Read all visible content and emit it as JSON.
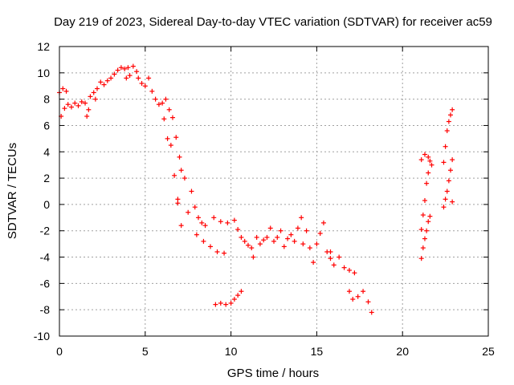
{
  "chart_data": {
    "type": "scatter",
    "title": "Day 219 of 2023, Sidereal Day-to-day VTEC variation (SDTVAR) for receiver ac59",
    "xlabel": "GPS time / hours",
    "ylabel": "SDTVAR / TECUs",
    "xlim": [
      0,
      25
    ],
    "ylim": [
      -10,
      12
    ],
    "x_ticks": [
      "0",
      "5",
      "10",
      "15",
      "20",
      "25"
    ],
    "y_ticks": [
      "-10",
      "-8",
      "-6",
      "-4",
      "-2",
      "0",
      "2",
      "4",
      "6",
      "8",
      "10",
      "12"
    ],
    "grid": true,
    "marker": "+",
    "series": [
      {
        "name": "SDTVAR",
        "color": "#ff0000",
        "points": [
          [
            0.0,
            8.5
          ],
          [
            0.1,
            6.7
          ],
          [
            0.2,
            8.8
          ],
          [
            0.3,
            7.3
          ],
          [
            0.4,
            8.6
          ],
          [
            0.5,
            7.6
          ],
          [
            0.7,
            7.4
          ],
          [
            0.9,
            7.7
          ],
          [
            1.1,
            7.5
          ],
          [
            1.3,
            7.8
          ],
          [
            1.5,
            7.7
          ],
          [
            1.7,
            7.2
          ],
          [
            1.6,
            6.7
          ],
          [
            1.8,
            8.2
          ],
          [
            2.0,
            8.5
          ],
          [
            2.2,
            8.8
          ],
          [
            2.1,
            8.0
          ],
          [
            2.4,
            9.3
          ],
          [
            2.6,
            9.1
          ],
          [
            2.8,
            9.4
          ],
          [
            3.0,
            9.6
          ],
          [
            3.2,
            9.9
          ],
          [
            3.4,
            10.2
          ],
          [
            3.6,
            10.4
          ],
          [
            3.8,
            10.3
          ],
          [
            4.0,
            10.4
          ],
          [
            3.9,
            9.6
          ],
          [
            4.1,
            9.8
          ],
          [
            4.3,
            10.5
          ],
          [
            4.5,
            10.1
          ],
          [
            4.6,
            9.6
          ],
          [
            4.8,
            9.2
          ],
          [
            5.0,
            9.0
          ],
          [
            5.2,
            9.6
          ],
          [
            5.4,
            8.6
          ],
          [
            5.6,
            8.0
          ],
          [
            5.8,
            7.6
          ],
          [
            6.0,
            7.7
          ],
          [
            6.2,
            8.0
          ],
          [
            6.1,
            6.5
          ],
          [
            6.3,
            5.0
          ],
          [
            6.4,
            7.2
          ],
          [
            6.5,
            4.5
          ],
          [
            6.6,
            6.6
          ],
          [
            6.7,
            2.2
          ],
          [
            6.8,
            5.1
          ],
          [
            6.9,
            0.4
          ],
          [
            7.0,
            3.6
          ],
          [
            7.1,
            2.6
          ],
          [
            7.1,
            -1.6
          ],
          [
            6.9,
            0.1
          ],
          [
            7.3,
            2.0
          ],
          [
            7.5,
            -0.6
          ],
          [
            7.7,
            1.0
          ],
          [
            7.9,
            -0.2
          ],
          [
            8.1,
            -1.0
          ],
          [
            8.3,
            -1.4
          ],
          [
            8.5,
            -1.6
          ],
          [
            8.0,
            -2.3
          ],
          [
            8.4,
            -2.8
          ],
          [
            8.8,
            -3.2
          ],
          [
            9.2,
            -3.6
          ],
          [
            9.6,
            -3.7
          ],
          [
            9.0,
            -1.0
          ],
          [
            9.4,
            -1.3
          ],
          [
            9.8,
            -1.4
          ],
          [
            10.2,
            -1.2
          ],
          [
            10.4,
            -1.9
          ],
          [
            10.6,
            -2.5
          ],
          [
            10.8,
            -2.8
          ],
          [
            11.0,
            -3.1
          ],
          [
            11.2,
            -3.3
          ],
          [
            11.3,
            -4.0
          ],
          [
            11.5,
            -2.5
          ],
          [
            11.7,
            -3.0
          ],
          [
            11.9,
            -2.7
          ],
          [
            12.1,
            -2.5
          ],
          [
            12.3,
            -1.8
          ],
          [
            12.5,
            -2.8
          ],
          [
            12.7,
            -2.5
          ],
          [
            12.9,
            -2.0
          ],
          [
            13.1,
            -3.2
          ],
          [
            13.3,
            -2.6
          ],
          [
            13.5,
            -2.3
          ],
          [
            13.7,
            -2.8
          ],
          [
            13.9,
            -1.8
          ],
          [
            14.1,
            -1.0
          ],
          [
            14.2,
            -3.0
          ],
          [
            14.4,
            -2.0
          ],
          [
            14.6,
            -3.3
          ],
          [
            14.8,
            -4.4
          ],
          [
            15.0,
            -3.0
          ],
          [
            15.2,
            -2.2
          ],
          [
            15.4,
            -1.4
          ],
          [
            15.6,
            -3.6
          ],
          [
            15.8,
            -4.1
          ],
          [
            16.0,
            -4.6
          ],
          [
            15.8,
            -3.6
          ],
          [
            16.3,
            -4.0
          ],
          [
            16.6,
            -4.8
          ],
          [
            16.9,
            -5.0
          ],
          [
            17.2,
            -5.2
          ],
          [
            16.9,
            -6.6
          ],
          [
            17.1,
            -7.2
          ],
          [
            17.4,
            -7.0
          ],
          [
            17.7,
            -6.6
          ],
          [
            18.0,
            -7.4
          ],
          [
            18.2,
            -8.2
          ],
          [
            9.1,
            -7.6
          ],
          [
            9.4,
            -7.5
          ],
          [
            9.7,
            -7.6
          ],
          [
            10.0,
            -7.5
          ],
          [
            10.2,
            -7.2
          ],
          [
            10.4,
            -6.9
          ],
          [
            10.6,
            -6.6
          ],
          [
            21.1,
            -4.1
          ],
          [
            21.2,
            -3.3
          ],
          [
            21.3,
            -2.6
          ],
          [
            21.4,
            -2.0
          ],
          [
            21.5,
            -1.3
          ],
          [
            21.6,
            -0.9
          ],
          [
            21.1,
            -1.9
          ],
          [
            21.2,
            -0.8
          ],
          [
            21.3,
            0.3
          ],
          [
            21.4,
            1.6
          ],
          [
            21.5,
            2.4
          ],
          [
            21.6,
            3.3
          ],
          [
            21.7,
            3.0
          ],
          [
            21.1,
            3.4
          ],
          [
            21.3,
            3.8
          ],
          [
            21.5,
            3.6
          ],
          [
            22.4,
            -0.2
          ],
          [
            22.5,
            0.4
          ],
          [
            22.6,
            1.0
          ],
          [
            22.7,
            1.8
          ],
          [
            22.8,
            2.6
          ],
          [
            22.9,
            3.4
          ],
          [
            22.4,
            3.2
          ],
          [
            22.5,
            4.4
          ],
          [
            22.6,
            5.6
          ],
          [
            22.7,
            6.3
          ],
          [
            22.8,
            6.8
          ],
          [
            22.9,
            7.2
          ],
          [
            22.9,
            0.2
          ]
        ]
      }
    ]
  }
}
